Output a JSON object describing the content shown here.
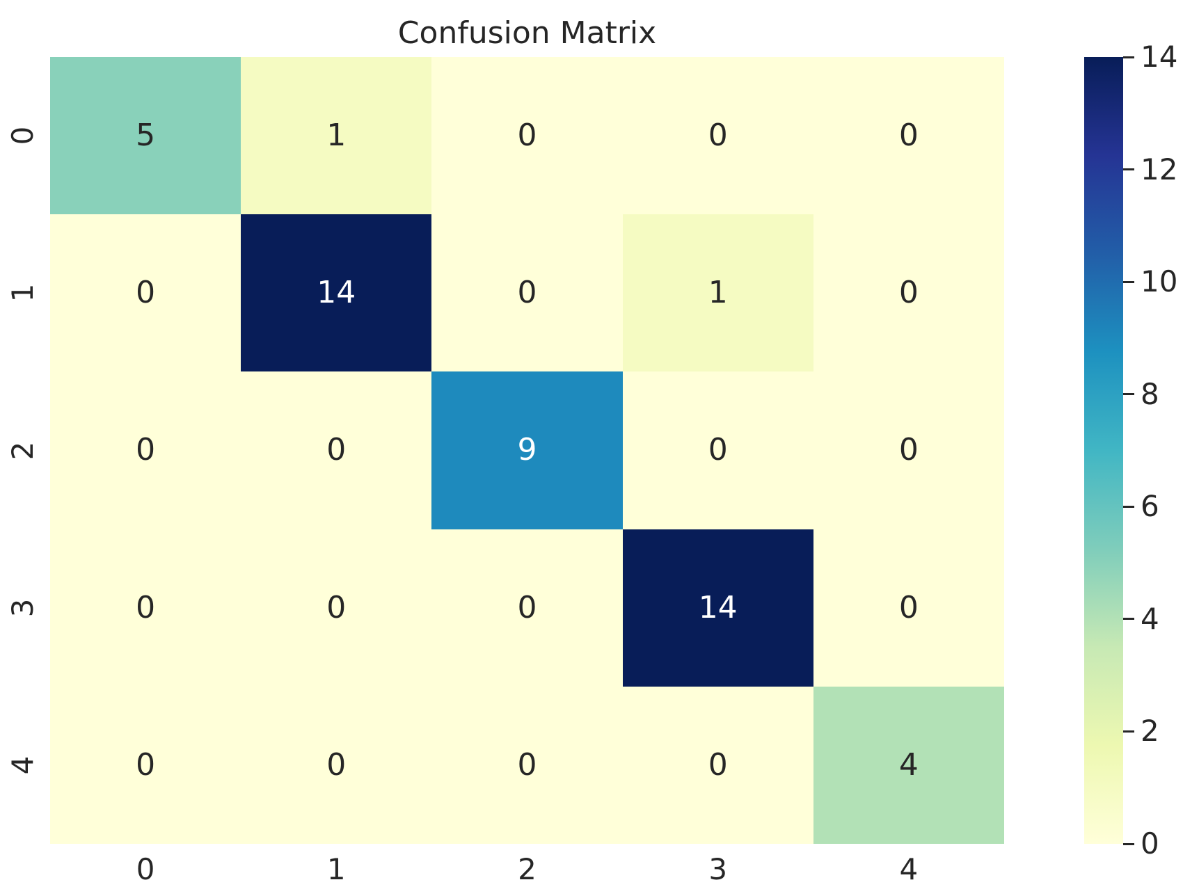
{
  "figure": {
    "background_color": "#ffffff",
    "text_color": "#262626"
  },
  "chart_data": {
    "type": "heatmap",
    "title": "Confusion Matrix",
    "x_tick_labels": [
      "0",
      "1",
      "2",
      "3",
      "4"
    ],
    "y_tick_labels": [
      "0",
      "1",
      "2",
      "3",
      "4"
    ],
    "matrix": [
      [
        5,
        1,
        0,
        0,
        0
      ],
      [
        0,
        14,
        0,
        1,
        0
      ],
      [
        0,
        0,
        9,
        0,
        0
      ],
      [
        0,
        0,
        0,
        14,
        0
      ],
      [
        0,
        0,
        0,
        0,
        4
      ]
    ],
    "vmin": 0,
    "vmax": 14,
    "colormap": {
      "name": "YlGnBu",
      "stops": [
        "#ffffd9",
        "#edf8b1",
        "#c7e9b4",
        "#7fcdbb",
        "#41b6c4",
        "#1d91c0",
        "#225ea8",
        "#253494",
        "#081d58"
      ]
    },
    "annotation_text_colors": {
      "dark": "#262626",
      "light": "#ffffff"
    },
    "colorbar": {
      "position": "right",
      "tick_values": [
        0,
        2,
        4,
        6,
        8,
        10,
        12,
        14
      ],
      "tick_labels": [
        "0",
        "2",
        "4",
        "6",
        "8",
        "10",
        "12",
        "14"
      ]
    },
    "grid": false,
    "cell_border": "none"
  }
}
